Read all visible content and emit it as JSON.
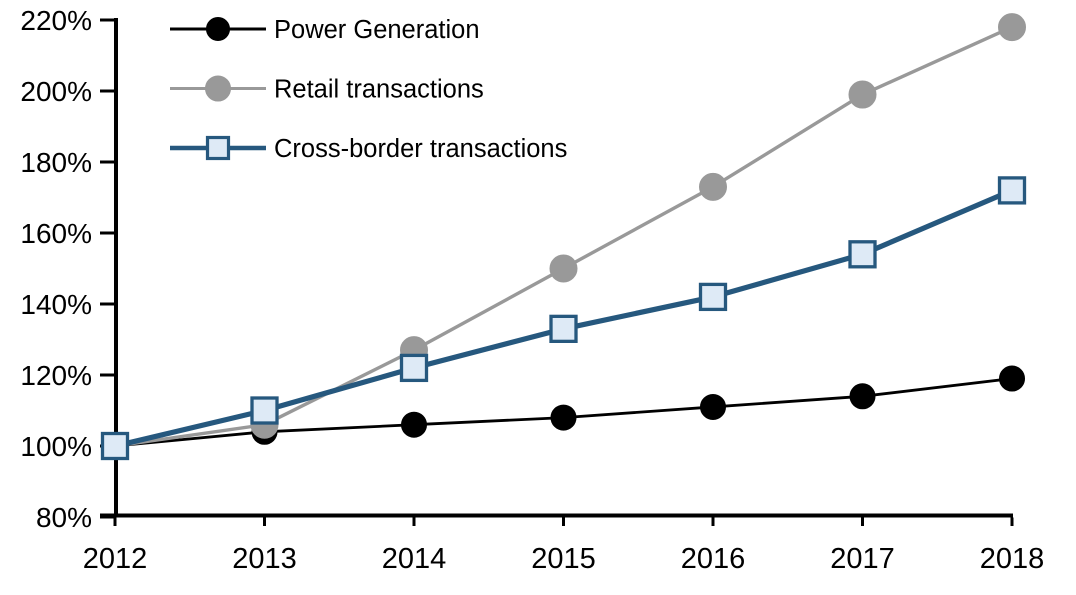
{
  "chart_data": {
    "type": "line",
    "title": "",
    "xlabel": "",
    "ylabel": "",
    "grid": false,
    "legend_position": "top-left",
    "x_axis": {
      "categories": [
        2012,
        2013,
        2014,
        2015,
        2016,
        2017,
        2018
      ],
      "tick_labels": [
        "2012",
        "2013",
        "2014",
        "2015",
        "2016",
        "2017",
        "2018"
      ]
    },
    "y_axis": {
      "min": 80,
      "max": 220,
      "step": 20,
      "unit": "%",
      "tick_values": [
        220,
        200,
        180,
        160,
        140,
        120,
        100,
        80
      ],
      "tick_labels": [
        "220%",
        "200%",
        "180%",
        "160%",
        "140%",
        "120%",
        "100%",
        "80%"
      ]
    },
    "series": [
      {
        "name": "Power Generation",
        "marker": "circle",
        "line_color": "#000000",
        "marker_fill": "#000000",
        "marker_stroke": "#000000",
        "line_width": 2.8,
        "marker_radius": 12.5,
        "values": [
          100,
          104,
          106,
          108,
          111,
          114,
          119
        ]
      },
      {
        "name": "Retail transactions",
        "marker": "circle",
        "line_color": "#999999",
        "marker_fill": "#999999",
        "marker_stroke": "#999999",
        "line_width": 3.4,
        "marker_radius": 13.5,
        "values": [
          100,
          106,
          127,
          150,
          173,
          199,
          218
        ]
      },
      {
        "name": "Cross-border transactions",
        "marker": "square",
        "line_color": "#26587E",
        "marker_fill": "#DEEAF6",
        "marker_stroke": "#26587E",
        "line_width": 5.2,
        "marker_radius": 12.5,
        "values": [
          100,
          110,
          122,
          133,
          142,
          154,
          172
        ]
      }
    ]
  }
}
